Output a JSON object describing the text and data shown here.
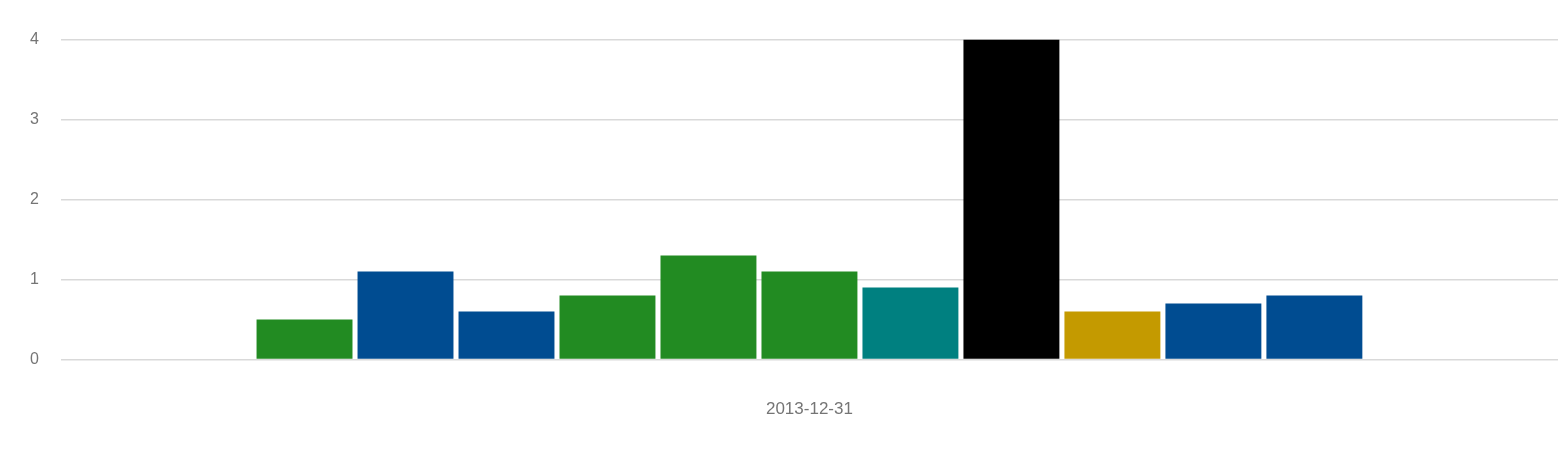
{
  "chart_data": {
    "type": "bar",
    "categories": [
      "2013-12-31"
    ],
    "series": [
      {
        "color": "#228b22",
        "values": [
          0.5
        ]
      },
      {
        "color": "#004c91",
        "values": [
          1.1
        ]
      },
      {
        "color": "#004c91",
        "values": [
          0.6
        ]
      },
      {
        "color": "#228b22",
        "values": [
          0.8
        ]
      },
      {
        "color": "#228b22",
        "values": [
          1.3
        ]
      },
      {
        "color": "#228b22",
        "values": [
          1.1
        ]
      },
      {
        "color": "#008080",
        "values": [
          0.9
        ]
      },
      {
        "color": "#000000",
        "values": [
          4
        ]
      },
      {
        "color": "#c49a00",
        "values": [
          0.6
        ]
      },
      {
        "color": "#004c91",
        "values": [
          0.7
        ]
      },
      {
        "color": "#004c91",
        "values": [
          0.8
        ]
      }
    ],
    "ylim": [
      0,
      4
    ],
    "yticks": [
      0,
      1,
      2,
      3,
      4
    ],
    "grid": "y",
    "legend": false
  }
}
